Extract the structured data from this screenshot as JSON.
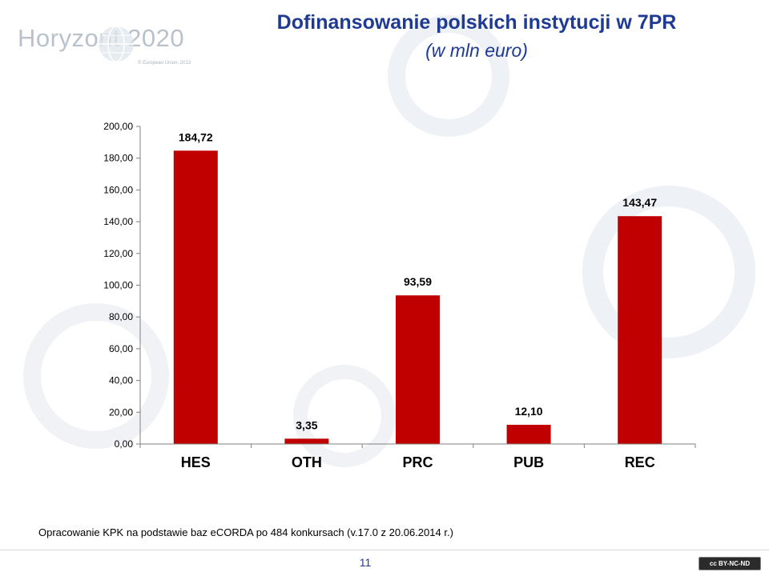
{
  "header": {
    "logo_text": "Horyzont 2020",
    "logo_copyright": "© European Union, 2013",
    "title": "Dofinansowanie polskich instytucji w 7PR",
    "subtitle": "(w mln euro)"
  },
  "chart_data": {
    "type": "bar",
    "categories": [
      "HES",
      "OTH",
      "PRC",
      "PUB",
      "REC"
    ],
    "values": [
      184.72,
      3.35,
      93.59,
      12.1,
      143.47
    ],
    "value_labels": [
      "184,72",
      "3,35",
      "93,59",
      "12,10",
      "143,47"
    ],
    "ylim": [
      0,
      200
    ],
    "yticks": [
      "0,00",
      "20,00",
      "40,00",
      "60,00",
      "80,00",
      "100,00",
      "120,00",
      "140,00",
      "160,00",
      "180,00",
      "200,00"
    ],
    "grid": false,
    "bar_color": "#c00000",
    "title": "",
    "xlabel": "",
    "ylabel": ""
  },
  "footer": {
    "note": "Opracowanie KPK na podstawie baz  eCORDA po 484 konkursach (v.17.0 z 20.06.2014 r.)",
    "page_number": "11",
    "license_badge": "cc BY-NC-ND"
  }
}
